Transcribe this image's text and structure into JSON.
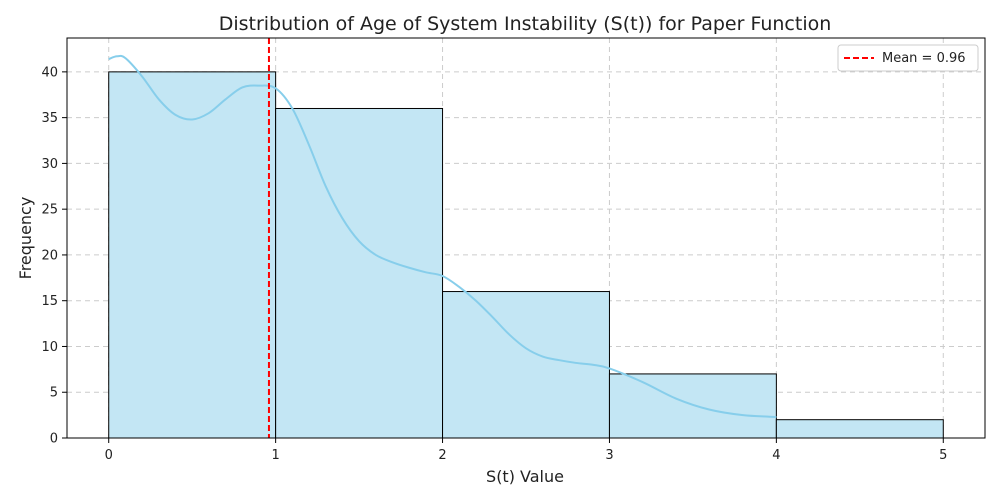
{
  "chart_data": {
    "type": "histogram",
    "title": "Distribution of Age of System Instability (S(t)) for Paper Function",
    "xlabel": "S(t) Value",
    "ylabel": "Frequency",
    "xlim": [
      -0.25,
      5.25
    ],
    "ylim": [
      0,
      43.7
    ],
    "xticks": [
      0,
      1,
      2,
      3,
      4,
      5
    ],
    "yticks": [
      0,
      5,
      10,
      15,
      20,
      25,
      30,
      35,
      40
    ],
    "grid": true,
    "bins": [
      {
        "x0": 0,
        "x1": 1,
        "count": 40
      },
      {
        "x0": 1,
        "x1": 2,
        "count": 36
      },
      {
        "x0": 2,
        "x1": 3,
        "count": 16
      },
      {
        "x0": 3,
        "x1": 4,
        "count": 7
      },
      {
        "x0": 4,
        "x1": 5,
        "count": 2
      }
    ],
    "kde": {
      "x": [
        0.0,
        0.05,
        0.1,
        0.2,
        0.3,
        0.4,
        0.5,
        0.6,
        0.7,
        0.8,
        0.9,
        1.0,
        1.1,
        1.2,
        1.3,
        1.4,
        1.5,
        1.6,
        1.7,
        1.8,
        1.9,
        2.0,
        2.1,
        2.2,
        2.3,
        2.4,
        2.5,
        2.6,
        2.7,
        2.8,
        2.9,
        3.0,
        3.2,
        3.4,
        3.6,
        3.8,
        4.0
      ],
      "y": [
        41.4,
        41.7,
        41.5,
        39.5,
        37.0,
        35.3,
        34.8,
        35.5,
        37.0,
        38.3,
        38.5,
        38.2,
        36.0,
        32.0,
        27.5,
        24.0,
        21.5,
        20.0,
        19.2,
        18.6,
        18.1,
        17.7,
        16.5,
        15.0,
        13.2,
        11.3,
        9.8,
        8.9,
        8.5,
        8.2,
        8.0,
        7.6,
        6.1,
        4.3,
        3.1,
        2.5,
        2.3
      ],
      "color": "#87ceeb"
    },
    "mean_line": {
      "value": 0.96,
      "label": "Mean = 0.96",
      "color": "#ff0000"
    },
    "bar_fill": "#c3e6f4",
    "bar_edge": "#000000",
    "legend": {
      "position": "top-right"
    }
  }
}
